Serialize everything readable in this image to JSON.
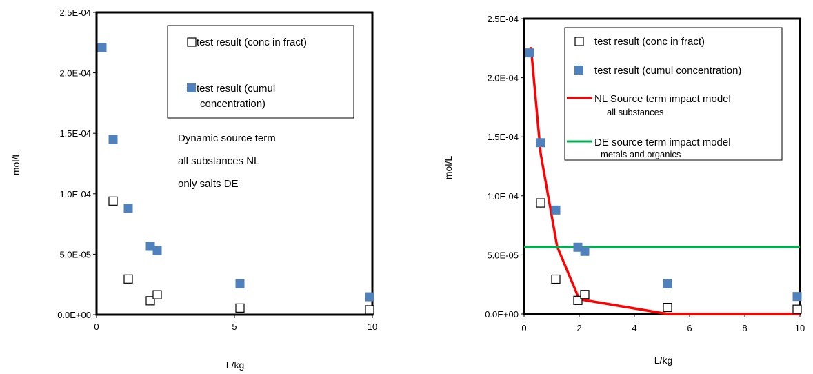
{
  "chart_data": [
    {
      "type": "scatter",
      "title": "",
      "xlabel": "L/kg",
      "ylabel": "mol/L",
      "xlim": [
        0,
        10
      ],
      "ylim": [
        0,
        0.00025
      ],
      "x_ticks": [
        "0",
        "5",
        "10"
      ],
      "y_ticks": [
        "0.0E+00",
        "5.0E-05",
        "1.0E-04",
        "1.5E-04",
        "2.0E-04",
        "2.5E-04"
      ],
      "grid": false,
      "legend_position": "top-right",
      "series": [
        {
          "name": "test result (conc in fract)",
          "marker": "open-square",
          "color": "#000000",
          "x": [
            0.6,
            1.15,
            1.95,
            2.2,
            5.2,
            9.9
          ],
          "y": [
            9.4e-05,
            2.95e-05,
            1.15e-05,
            1.65e-05,
            5.5e-06,
            4e-06
          ]
        },
        {
          "name": "test result (cumul concentration)",
          "name_lines": [
            "test result (cumul",
            "concentration)"
          ],
          "marker": "filled-square",
          "color": "#4f81bd",
          "x": [
            0.2,
            0.6,
            1.15,
            1.95,
            2.2,
            5.2,
            9.9
          ],
          "y": [
            0.000221,
            0.000145,
            8.8e-05,
            5.65e-05,
            5.3e-05,
            2.55e-05,
            1.48e-05
          ]
        }
      ],
      "annotation": [
        "Dynamic source term",
        "all substances NL",
        "only salts DE"
      ]
    },
    {
      "type": "scatter",
      "title": "",
      "xlabel": "L/kg",
      "ylabel": "mol/L",
      "xlim": [
        0,
        10
      ],
      "ylim": [
        0,
        0.00025
      ],
      "x_ticks": [
        "0",
        "2",
        "4",
        "6",
        "8",
        "10"
      ],
      "y_ticks": [
        "0.0E+00",
        "5.0E-05",
        "1.0E-04",
        "1.5E-04",
        "2.0E-04",
        "2.5E-04"
      ],
      "grid": false,
      "legend_position": "top-right",
      "series": [
        {
          "name": "test result (conc in fract)",
          "marker": "open-square",
          "color": "#000000",
          "x": [
            0.6,
            1.15,
            1.95,
            2.2,
            5.2,
            9.9
          ],
          "y": [
            9.4e-05,
            2.95e-05,
            1.15e-05,
            1.65e-05,
            5.5e-06,
            4e-06
          ]
        },
        {
          "name": "test result (cumul concentration)",
          "marker": "filled-square",
          "color": "#4f81bd",
          "x": [
            0.2,
            0.6,
            1.15,
            1.95,
            2.2,
            5.2,
            9.9
          ],
          "y": [
            0.000221,
            0.000145,
            8.8e-05,
            5.65e-05,
            5.3e-05,
            2.55e-05,
            1.48e-05
          ]
        },
        {
          "name": "NL Source term impact model",
          "sub_label": "all substances",
          "marker": "line",
          "color": "#ff0000",
          "x": [
            0.25,
            0.6,
            1.2,
            2.0,
            5.2,
            10
          ],
          "y": [
            0.000226,
            0.000136,
            5.7e-05,
            1.25e-05,
            0,
            0
          ]
        },
        {
          "name": "DE source term impact model",
          "sub_label": "metals and organics",
          "marker": "line",
          "color": "#00b050",
          "x": [
            0,
            10
          ],
          "y": [
            5.65e-05,
            5.65e-05
          ]
        }
      ]
    }
  ]
}
